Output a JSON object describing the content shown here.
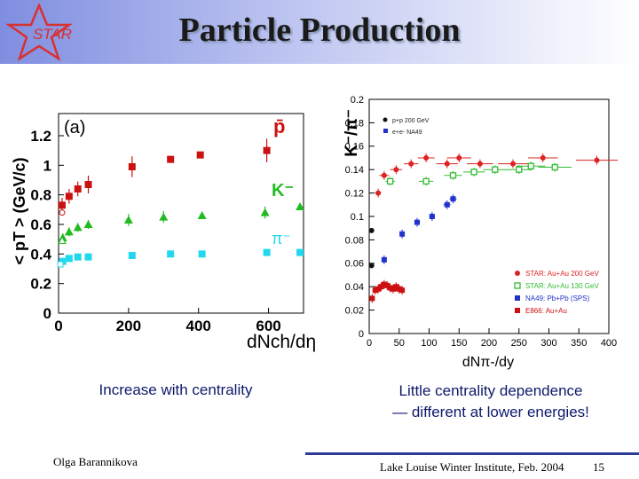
{
  "title": "Particle Production",
  "logo": {
    "text": "STAR",
    "icon": "star-outline-icon",
    "color": "#d93030"
  },
  "captions": {
    "left": "Increase with centrality",
    "right_line1": "Little  centrality dependence",
    "right_line2": "— different at lower energies!"
  },
  "footer": {
    "author": "Olga Barannikova",
    "conference": "Lake Louise Winter Institute, Feb. 2004",
    "page": "15"
  },
  "chart_data": [
    {
      "type": "scatter",
      "panel_label": "(a)",
      "ylabel": "< pT > (GeV/c)",
      "xlabel": "dNch/dη",
      "xlim": [
        0,
        700
      ],
      "ylim": [
        0,
        1.35
      ],
      "x_ticks": [
        "0",
        "200",
        "400",
        "600"
      ],
      "y_ticks": [
        "0",
        "0.2",
        "0.4",
        "0.6",
        "0.8",
        "1",
        "1.2"
      ],
      "series": [
        {
          "name": "p̄",
          "color": "#cc1111",
          "marker": "square",
          "x": [
            10,
            30,
            55,
            85,
            210,
            320,
            405,
            595
          ],
          "y": [
            0.73,
            0.79,
            0.84,
            0.87,
            0.99,
            1.04,
            1.07,
            1.1
          ],
          "err": [
            0.05,
            0.05,
            0.05,
            0.06,
            0.07,
            0,
            0,
            0.08
          ]
        },
        {
          "name": "K⁻",
          "color": "#22bb22",
          "marker": "triangle",
          "x": [
            12,
            30,
            55,
            85,
            200,
            300,
            410,
            590,
            690
          ],
          "y": [
            0.51,
            0.55,
            0.58,
            0.6,
            0.63,
            0.65,
            0.66,
            0.68,
            0.72
          ],
          "err": [
            0.03,
            0.03,
            0.03,
            0.03,
            0.04,
            0.04,
            0,
            0.04,
            0
          ]
        },
        {
          "name": "π⁻",
          "color": "#22d8ee",
          "marker": "square",
          "x": [
            12,
            30,
            55,
            85,
            210,
            320,
            410,
            595,
            690
          ],
          "y": [
            0.35,
            0.37,
            0.38,
            0.38,
            0.39,
            0.4,
            0.4,
            0.41,
            0.41
          ],
          "err": [
            0,
            0,
            0,
            0,
            0,
            0,
            0,
            0,
            0
          ]
        },
        {
          "name": "low-energy open points",
          "color": "#cc1111",
          "marker": "open",
          "x": [
            10
          ],
          "y": [
            0.68
          ],
          "err": [
            0
          ]
        }
      ],
      "open_markers": [
        {
          "x": 10,
          "y": 0.68,
          "color": "#cc1111",
          "shape": "circle"
        },
        {
          "x": 10,
          "y": 0.49,
          "color": "#22bb22",
          "shape": "triangle"
        },
        {
          "x": 5,
          "y": 0.33,
          "color": "#22d8ee",
          "shape": "square"
        }
      ]
    },
    {
      "type": "scatter",
      "ylabel": "K⁻/π⁻",
      "xlabel": "dNπ-/dy",
      "xlim": [
        0,
        400
      ],
      "ylim": [
        0,
        0.2
      ],
      "x_ticks": [
        "0",
        "50",
        "100",
        "150",
        "200",
        "250",
        "300",
        "350",
        "400"
      ],
      "y_ticks": [
        "0",
        "0.02",
        "0.04",
        "0.06",
        "0.08",
        "0.1",
        "0.12",
        "0.14",
        "0.16",
        "0.18",
        "0.2"
      ],
      "inner_legend": [
        "p+p 200 GeV",
        "e+e- NA49"
      ],
      "legend": [
        "STAR: Au+Au 200 GeV",
        "STAR: Au+Au 130 GeV",
        "NA49: Pb+Pb (SPS)",
        "E866: Au+Au"
      ],
      "legend_position": "bottom-right",
      "series": [
        {
          "name": "STAR: Au+Au 200 GeV",
          "color": "#dd2222",
          "marker": "circle",
          "x": [
            15,
            25,
            45,
            70,
            95,
            130,
            150,
            185,
            240,
            290,
            380
          ],
          "y": [
            0.12,
            0.135,
            0.14,
            0.145,
            0.15,
            0.145,
            0.15,
            0.145,
            0.145,
            0.15,
            0.148
          ],
          "xerr": [
            5,
            8,
            10,
            12,
            14,
            18,
            20,
            22,
            25,
            25,
            35
          ]
        },
        {
          "name": "STAR: Au+Au 130 GeV",
          "color": "#33bb33",
          "marker": "opensquare",
          "x": [
            35,
            95,
            140,
            175,
            210,
            250,
            270,
            310
          ],
          "y": [
            0.13,
            0.13,
            0.135,
            0.138,
            0.14,
            0.14,
            0.143,
            0.142
          ],
          "xerr": [
            8,
            12,
            15,
            18,
            20,
            22,
            24,
            28
          ]
        },
        {
          "name": "NA49: Pb+Pb (SPS)",
          "color": "#2233cc",
          "marker": "square",
          "x": [
            25,
            55,
            80,
            105,
            130,
            140
          ],
          "y": [
            0.063,
            0.085,
            0.095,
            0.1,
            0.11,
            0.115
          ],
          "xerr": [
            3,
            4,
            5,
            5,
            6,
            6
          ]
        },
        {
          "name": "E866: Au+Au",
          "color": "#cc1111",
          "marker": "square",
          "x": [
            5,
            10,
            15,
            20,
            25,
            30,
            35,
            40,
            45,
            50,
            55
          ],
          "y": [
            0.03,
            0.037,
            0.038,
            0.04,
            0.042,
            0.041,
            0.039,
            0.038,
            0.04,
            0.038,
            0.037
          ],
          "xerr": [
            2,
            2,
            2,
            2,
            2,
            2,
            2,
            2,
            2,
            2,
            2
          ]
        },
        {
          "name": "p+p 200 GeV",
          "color": "#111111",
          "marker": "circle",
          "x": [
            4,
            4
          ],
          "y": [
            0.088,
            0.058
          ],
          "xerr": [
            0,
            0
          ]
        }
      ]
    }
  ]
}
